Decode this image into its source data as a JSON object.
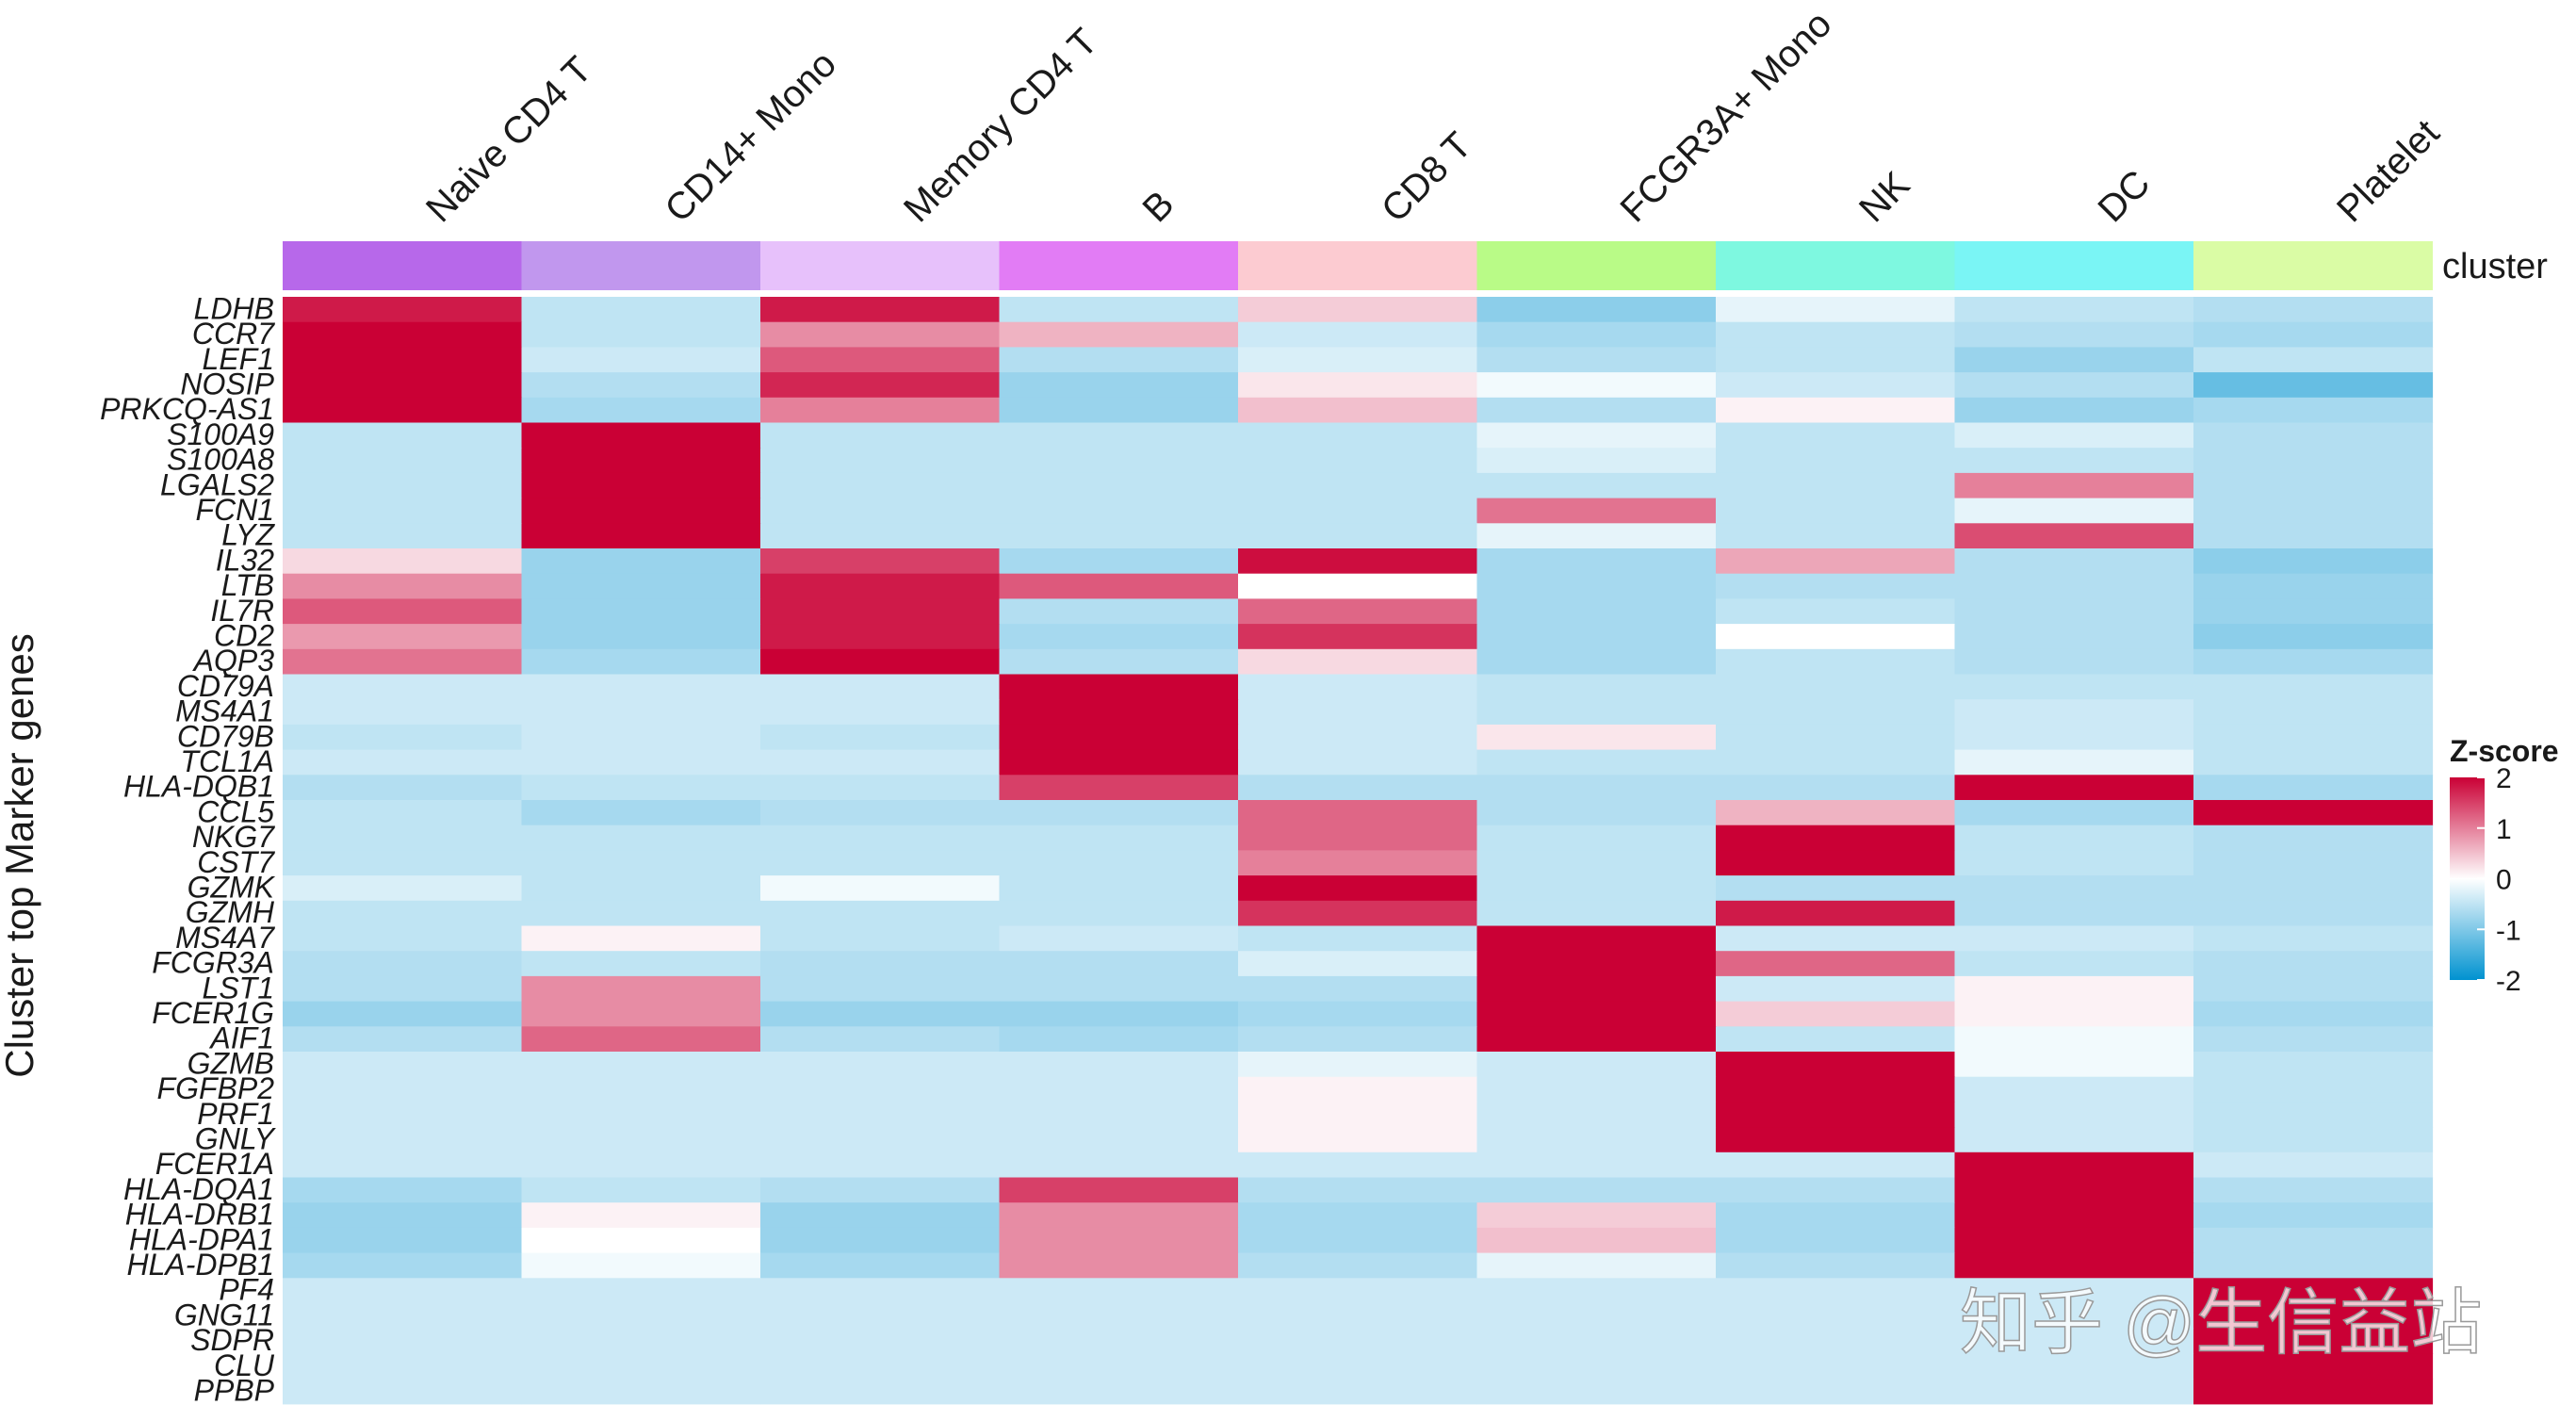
{
  "chart_data": {
    "type": "heatmap",
    "ylabel": "Cluster top Marker genes",
    "annotation_label": "cluster",
    "clusters": [
      {
        "name": "Naive CD4 T",
        "color": "#b768ea"
      },
      {
        "name": "CD14+ Mono",
        "color": "#c197ee"
      },
      {
        "name": "Memory CD4 T",
        "color": "#e7c1fb"
      },
      {
        "name": "B",
        "color": "#e27cf5"
      },
      {
        "name": "CD8 T",
        "color": "#fccbd1"
      },
      {
        "name": "FCGR3A+ Mono",
        "color": "#b9fb87"
      },
      {
        "name": "NK",
        "color": "#7ef8e0"
      },
      {
        "name": "DC",
        "color": "#7af5f5"
      },
      {
        "name": "Platelet",
        "color": "#dafca5"
      }
    ],
    "genes": [
      "LDHB",
      "CCR7",
      "LEF1",
      "NOSIP",
      "PRKCQ-AS1",
      "S100A9",
      "S100A8",
      "LGALS2",
      "FCN1",
      "LYZ",
      "IL32",
      "LTB",
      "IL7R",
      "CD2",
      "AQP3",
      "CD79A",
      "MS4A1",
      "CD79B",
      "TCL1A",
      "HLA-DQB1",
      "CCL5",
      "NKG7",
      "CST7",
      "GZMK",
      "GZMH",
      "MS4A7",
      "FCGR3A",
      "LST1",
      "FCER1G",
      "AIF1",
      "GZMB",
      "FGFBP2",
      "PRF1",
      "GNLY",
      "FCER1A",
      "HLA-DQA1",
      "HLA-DRB1",
      "HLA-DPA1",
      "HLA-DPB1",
      "PF4",
      "GNG11",
      "SDPR",
      "CLU",
      "PPBP"
    ],
    "values": [
      [
        1.8,
        -0.5,
        1.8,
        -0.5,
        0.4,
        -0.9,
        -0.2,
        -0.5,
        -0.6
      ],
      [
        2.5,
        -0.5,
        0.9,
        0.6,
        -0.4,
        -0.7,
        -0.5,
        -0.6,
        -0.7
      ],
      [
        2.5,
        -0.4,
        1.3,
        -0.6,
        -0.3,
        -0.6,
        -0.5,
        -0.8,
        -0.5
      ],
      [
        2.2,
        -0.6,
        1.7,
        -0.8,
        0.2,
        -0.1,
        -0.4,
        -0.6,
        -1.2
      ],
      [
        2.5,
        -0.7,
        1.0,
        -0.8,
        0.5,
        -0.6,
        0.1,
        -0.8,
        -0.7
      ],
      [
        -0.5,
        2.5,
        -0.5,
        -0.5,
        -0.5,
        -0.2,
        -0.5,
        -0.3,
        -0.6
      ],
      [
        -0.5,
        2.5,
        -0.5,
        -0.5,
        -0.5,
        -0.3,
        -0.5,
        -0.5,
        -0.6
      ],
      [
        -0.5,
        2.5,
        -0.5,
        -0.5,
        -0.5,
        -0.5,
        -0.5,
        1.0,
        -0.6
      ],
      [
        -0.5,
        2.5,
        -0.5,
        -0.5,
        -0.5,
        1.1,
        -0.5,
        -0.2,
        -0.6
      ],
      [
        -0.5,
        2.5,
        -0.5,
        -0.5,
        -0.5,
        -0.2,
        -0.5,
        1.4,
        -0.6
      ],
      [
        0.3,
        -0.8,
        1.5,
        -0.7,
        1.9,
        -0.7,
        0.7,
        -0.6,
        -0.9
      ],
      [
        0.9,
        -0.8,
        1.8,
        1.3,
        0.0,
        -0.7,
        -0.6,
        -0.6,
        -0.8
      ],
      [
        1.3,
        -0.8,
        1.8,
        -0.6,
        1.2,
        -0.7,
        -0.5,
        -0.6,
        -0.8
      ],
      [
        0.8,
        -0.8,
        1.8,
        -0.7,
        1.6,
        -0.7,
        0.0,
        -0.6,
        -0.9
      ],
      [
        1.1,
        -0.7,
        2.5,
        -0.6,
        0.3,
        -0.7,
        -0.5,
        -0.6,
        -0.7
      ],
      [
        -0.4,
        -0.4,
        -0.4,
        2.5,
        -0.4,
        -0.5,
        -0.5,
        -0.5,
        -0.5
      ],
      [
        -0.4,
        -0.4,
        -0.4,
        2.5,
        -0.4,
        -0.5,
        -0.5,
        -0.4,
        -0.5
      ],
      [
        -0.5,
        -0.4,
        -0.5,
        2.5,
        -0.4,
        0.2,
        -0.5,
        -0.4,
        -0.5
      ],
      [
        -0.4,
        -0.4,
        -0.4,
        2.5,
        -0.4,
        -0.5,
        -0.5,
        -0.2,
        -0.5
      ],
      [
        -0.6,
        -0.5,
        -0.5,
        1.5,
        -0.6,
        -0.6,
        -0.6,
        2.5,
        -0.7
      ],
      [
        -0.5,
        -0.7,
        -0.6,
        -0.6,
        1.2,
        -0.6,
        0.6,
        -0.7,
        2.5
      ],
      [
        -0.5,
        -0.5,
        -0.5,
        -0.5,
        1.2,
        -0.5,
        2.5,
        -0.5,
        -0.6
      ],
      [
        -0.5,
        -0.5,
        -0.5,
        -0.5,
        1.0,
        -0.5,
        2.5,
        -0.5,
        -0.6
      ],
      [
        -0.3,
        -0.5,
        -0.1,
        -0.5,
        2.5,
        -0.5,
        -0.6,
        -0.6,
        -0.6
      ],
      [
        -0.5,
        -0.5,
        -0.5,
        -0.5,
        1.6,
        -0.5,
        1.8,
        -0.6,
        -0.6
      ],
      [
        -0.5,
        0.1,
        -0.5,
        -0.4,
        -0.5,
        2.5,
        -0.4,
        -0.4,
        -0.5
      ],
      [
        -0.6,
        -0.5,
        -0.6,
        -0.6,
        -0.3,
        2.5,
        1.2,
        -0.5,
        -0.6
      ],
      [
        -0.6,
        0.9,
        -0.6,
        -0.6,
        -0.6,
        2.5,
        -0.4,
        0.1,
        -0.6
      ],
      [
        -0.8,
        0.9,
        -0.8,
        -0.8,
        -0.7,
        2.5,
        0.4,
        0.1,
        -0.7
      ],
      [
        -0.6,
        1.2,
        -0.6,
        -0.7,
        -0.6,
        2.5,
        -0.5,
        -0.1,
        -0.6
      ],
      [
        -0.4,
        -0.4,
        -0.4,
        -0.4,
        -0.2,
        -0.4,
        2.5,
        -0.1,
        -0.5
      ],
      [
        -0.4,
        -0.4,
        -0.4,
        -0.4,
        0.1,
        -0.4,
        2.5,
        -0.4,
        -0.5
      ],
      [
        -0.4,
        -0.4,
        -0.4,
        -0.4,
        0.1,
        -0.4,
        2.5,
        -0.4,
        -0.5
      ],
      [
        -0.4,
        -0.4,
        -0.4,
        -0.4,
        0.1,
        -0.4,
        2.5,
        -0.4,
        -0.5
      ],
      [
        -0.4,
        -0.4,
        -0.4,
        -0.4,
        -0.4,
        -0.4,
        -0.4,
        2.5,
        -0.4
      ],
      [
        -0.7,
        -0.5,
        -0.6,
        1.5,
        -0.6,
        -0.6,
        -0.6,
        2.5,
        -0.6
      ],
      [
        -0.8,
        0.1,
        -0.8,
        0.9,
        -0.7,
        0.4,
        -0.7,
        2.5,
        -0.7
      ],
      [
        -0.8,
        0.0,
        -0.8,
        0.9,
        -0.7,
        0.5,
        -0.7,
        2.5,
        -0.6
      ],
      [
        -0.7,
        -0.1,
        -0.7,
        0.9,
        -0.6,
        -0.2,
        -0.6,
        2.5,
        -0.6
      ],
      [
        -0.4,
        -0.4,
        -0.4,
        -0.4,
        -0.4,
        -0.4,
        -0.4,
        -0.4,
        2.5
      ],
      [
        -0.4,
        -0.4,
        -0.4,
        -0.4,
        -0.4,
        -0.4,
        -0.4,
        -0.4,
        2.5
      ],
      [
        -0.4,
        -0.4,
        -0.4,
        -0.4,
        -0.4,
        -0.4,
        -0.4,
        -0.4,
        2.5
      ],
      [
        -0.4,
        -0.4,
        -0.4,
        -0.4,
        -0.4,
        -0.4,
        -0.4,
        -0.4,
        2.5
      ],
      [
        -0.4,
        -0.4,
        -0.4,
        -0.4,
        -0.4,
        -0.4,
        -0.4,
        -0.4,
        2.5
      ]
    ],
    "legend": {
      "title": "Z-score",
      "ticks": [
        2,
        1,
        0,
        -1,
        -2
      ],
      "tick_labels": [
        "2",
        "1",
        "0",
        "-1",
        "-2"
      ],
      "colors": {
        "high": "#ca0035",
        "mid": "#ffffff",
        "low": "#0092d0"
      }
    }
  },
  "watermark": "知乎 @生信益站"
}
